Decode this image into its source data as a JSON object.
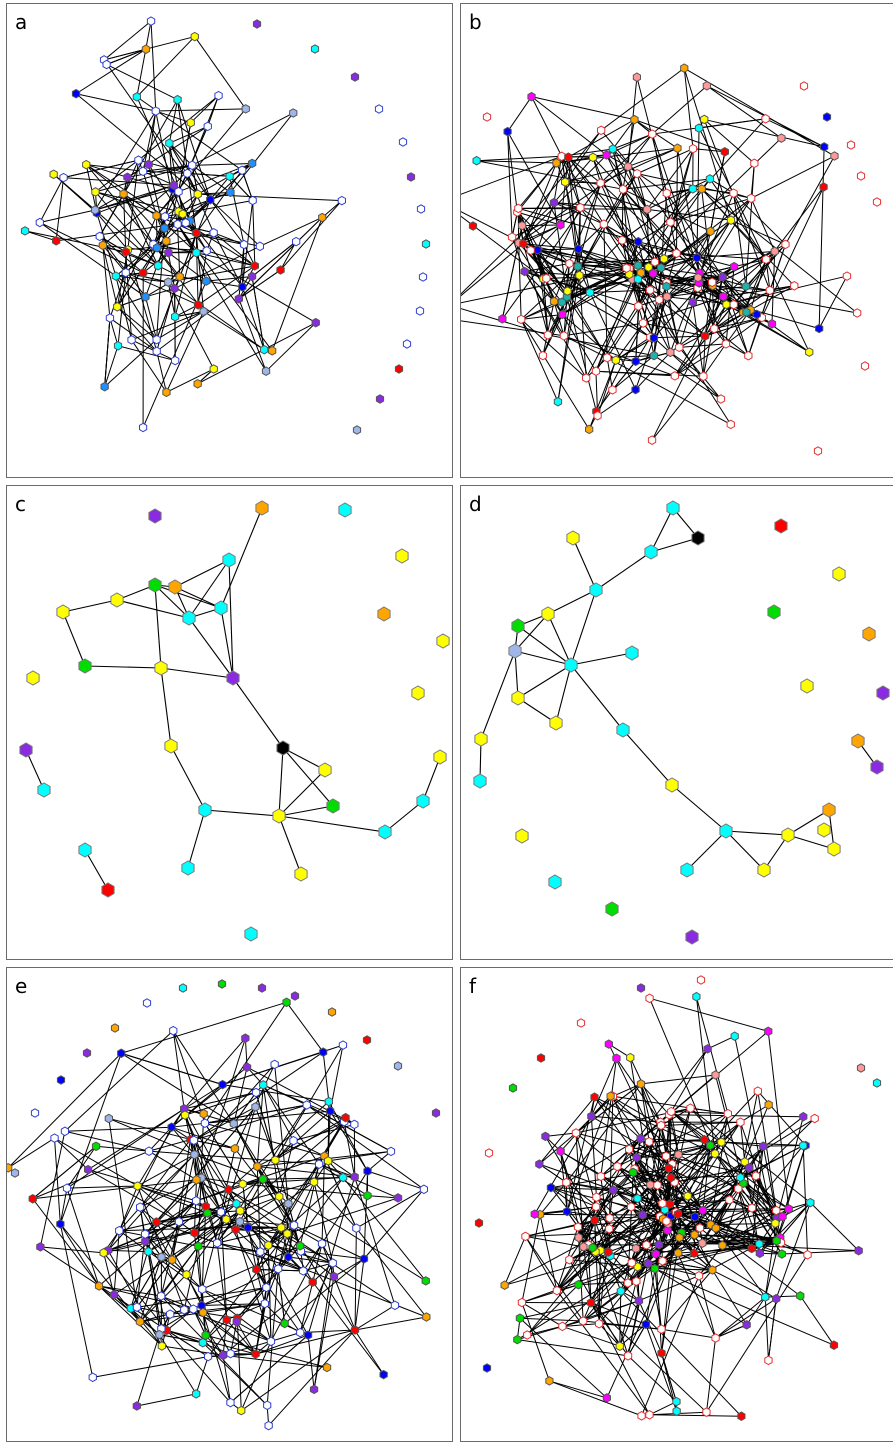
{
  "panels": [
    {
      "id": "a",
      "label": "a",
      "node_shape": "small-hexagon"
    },
    {
      "id": "b",
      "label": "b",
      "node_shape": "small-hexagon"
    },
    {
      "id": "c",
      "label": "c",
      "node_shape": "large-hexagon"
    },
    {
      "id": "d",
      "label": "d",
      "node_shape": "large-hexagon"
    },
    {
      "id": "e",
      "label": "e",
      "node_shape": "small-hexagon"
    },
    {
      "id": "f",
      "label": "f",
      "node_shape": "small-hexagon"
    }
  ],
  "colors": {
    "edge": "#000000",
    "border": "#6b6b6b",
    "node_palette": [
      "#0000ff",
      "#00ffff",
      "#ffff00",
      "#00dd00",
      "#ff0000",
      "#8a2be2",
      "#ffa500",
      "#ff00ff",
      "#ffffff",
      "#9fb6e8",
      "#1e90ff",
      "#000000"
    ]
  }
}
